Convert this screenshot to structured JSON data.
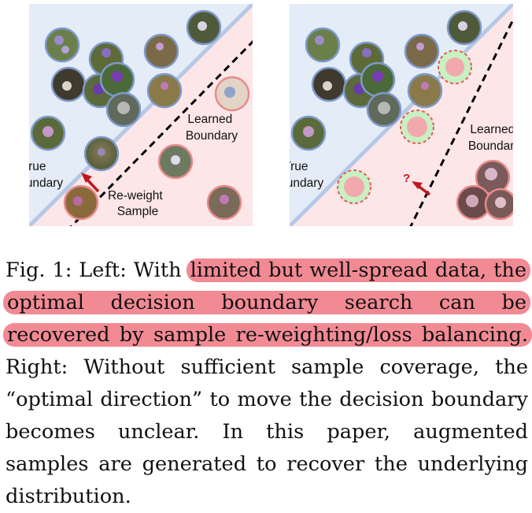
{
  "figure": {
    "left_panel": {
      "true_boundary_label": [
        "True",
        "Boundary"
      ],
      "learned_boundary_label": [
        "Learned",
        "Boundary"
      ],
      "reweight_label": [
        "Re-weight",
        "Sample"
      ]
    },
    "right_panel": {
      "true_boundary_label": [
        "True",
        "Boundary"
      ],
      "learned_boundary_label": [
        "Learned",
        "Boundary"
      ],
      "question_mark": "?"
    },
    "colors": {
      "blue_region": "#e3ecf7",
      "pink_region": "#fde6e8",
      "true_boundary": "#b5c9e6",
      "arrow": "#c0191e",
      "augmented_fill": "#f2a9ae",
      "augmented_ring": "#c8f0c0",
      "highlight": "#f28a94"
    }
  },
  "caption": {
    "fig_label": "Fig. 1:",
    "part1": "Left: With",
    "highlighted": "limited but well-spread data, the optimal decision boundary search can be recovered by sample re-weighting/loss balancing.",
    "part2": "Right: Without sufficient sample coverage, the “optimal direction” to move the decision boundary becomes unclear. In this paper, augmented samples are generated to recover the underlying distribution."
  }
}
